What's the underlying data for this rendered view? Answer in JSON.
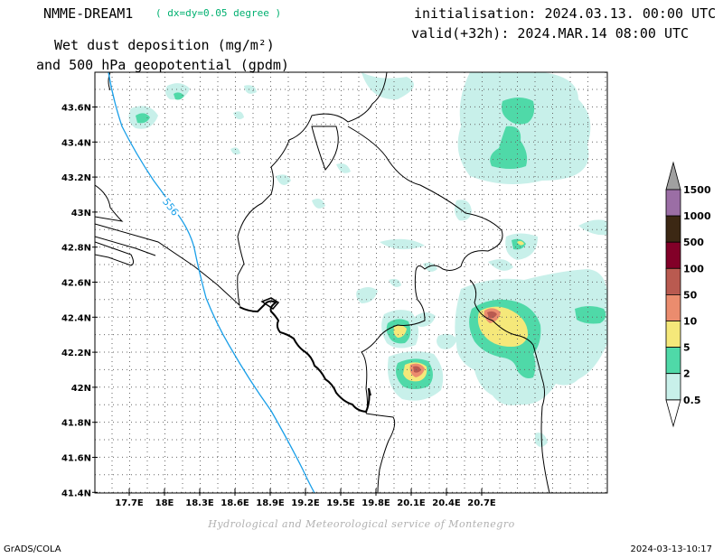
{
  "header": {
    "model": "NMME-DREAM1",
    "resolution": "( dx=dy=0.05 degree )",
    "title_line1": "Wet dust deposition (mg/m²)",
    "title_line2": "and 500 hPa geopotential (gpdm)",
    "init": "initialisation: 2024.03.13. 00:00 UTC",
    "valid": "valid(+32h): 2024.MAR.14 08:00 UTC"
  },
  "map": {
    "lon_labels": [
      "17.7E",
      "18E",
      "18.3E",
      "18.6E",
      "18.9E",
      "19.2E",
      "19.5E",
      "19.8E",
      "20.1E",
      "20.4E",
      "20.7E"
    ],
    "lat_labels": [
      "43.6N",
      "43.4N",
      "43.2N",
      "43N",
      "42.8N",
      "42.6N",
      "42.4N",
      "42.2N",
      "42N",
      "41.8N",
      "41.6N",
      "41.4N"
    ],
    "contour_label": "556",
    "contour_color": "#1a9fe8",
    "colors": {
      "c05": "#c8f0ea",
      "c2": "#4fd9a8",
      "c5": "#f5e87a",
      "c10": "#eb8c6e",
      "c50": "#b95a50",
      "c100": "#820028",
      "c500": "#3c2814",
      "c1000": "#9b6ea5",
      "c1500": "#a0a0a0"
    }
  },
  "legend": {
    "labels": [
      "1500",
      "1000",
      "500",
      "100",
      "50",
      "10",
      "5",
      "2",
      "0.5"
    ]
  },
  "credit": "Hydrological and Meteorological service of Montenegro",
  "footer": {
    "left": "GrADS/COLA",
    "right": "2024-03-13-10:17"
  }
}
